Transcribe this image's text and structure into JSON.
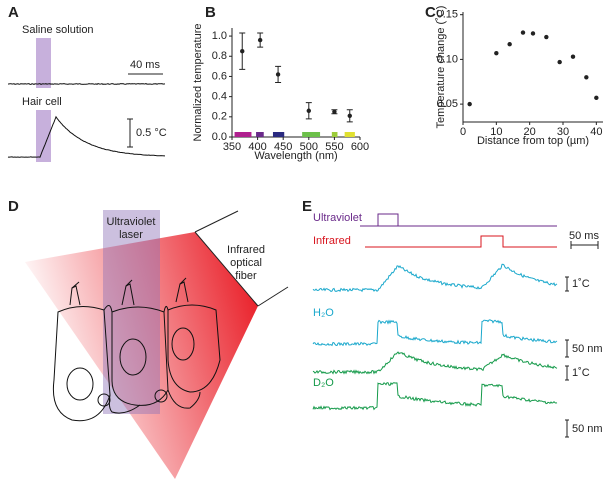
{
  "panels": {
    "A": {
      "letter": "A",
      "title": "Saline solution",
      "subtitle": "Hair cell",
      "time_scale": "40 ms",
      "temp_scale": "0.5 °C"
    },
    "B": {
      "letter": "B"
    },
    "C": {
      "letter": "C"
    },
    "D": {
      "letter": "D",
      "uv_label": [
        "Ultraviolet",
        "laser"
      ],
      "ir_label": [
        "Infrared",
        "optical",
        "fiber"
      ]
    },
    "E": {
      "letter": "E",
      "uv": "Ultraviolet",
      "ir": "Infrared",
      "time_scale": "50 ms",
      "water": "H₂O",
      "heavy_water": "D₂O",
      "temp_scale": "1˚C",
      "disp_scale": "50 nm"
    }
  },
  "chart_data": [
    {
      "type": "scatter",
      "xlabel": "Wavelength (nm)",
      "ylabel": "Normalized temperature",
      "x": [
        370,
        405,
        440,
        500,
        550,
        580
      ],
      "values": [
        0.85,
        0.96,
        0.62,
        0.26,
        0.25,
        0.21
      ],
      "errors": [
        0.18,
        0.07,
        0.08,
        0.08,
        0.02,
        0.06
      ],
      "color": "#222222",
      "bands": [
        {
          "color": "#b0208f",
          "range": [
            355,
            388
          ]
        },
        {
          "color": "#6a2a8a",
          "range": [
            397,
            412
          ]
        },
        {
          "color": "#2a2a80",
          "range": [
            430,
            452
          ]
        },
        {
          "color": "#6cc04a",
          "range": [
            487,
            522
          ]
        },
        {
          "color": "#9ccc3a",
          "range": [
            545,
            556
          ]
        },
        {
          "color": "#e0e030",
          "range": [
            570,
            590
          ]
        }
      ],
      "xlim": [
        350,
        600
      ],
      "xticks": [
        350,
        400,
        450,
        500,
        550,
        600
      ],
      "ylim": [
        0,
        1.08
      ],
      "yticks": [
        {
          "value": 0,
          "label": "0.0"
        },
        0.2,
        0.4,
        0.6,
        0.8,
        {
          "value": 1,
          "label": "1.0"
        }
      ]
    },
    {
      "type": "scatter",
      "xlabel": "Distance from top (µm)",
      "ylabel": "Temperature change (˚C)",
      "x": [
        2,
        10,
        14,
        18,
        21,
        25,
        29,
        33,
        37,
        40
      ],
      "values": [
        0.05,
        0.107,
        0.117,
        0.13,
        0.129,
        0.125,
        0.097,
        0.103,
        0.08,
        0.057
      ],
      "color": "#222222",
      "xlim": [
        0,
        42
      ],
      "xticks": [
        0,
        10,
        20,
        30,
        40
      ],
      "ylim": [
        0.03,
        0.153
      ],
      "yticks": [
        0.05,
        {
          "value": 0.1,
          "label": "0.10"
        },
        0.15
      ]
    }
  ]
}
